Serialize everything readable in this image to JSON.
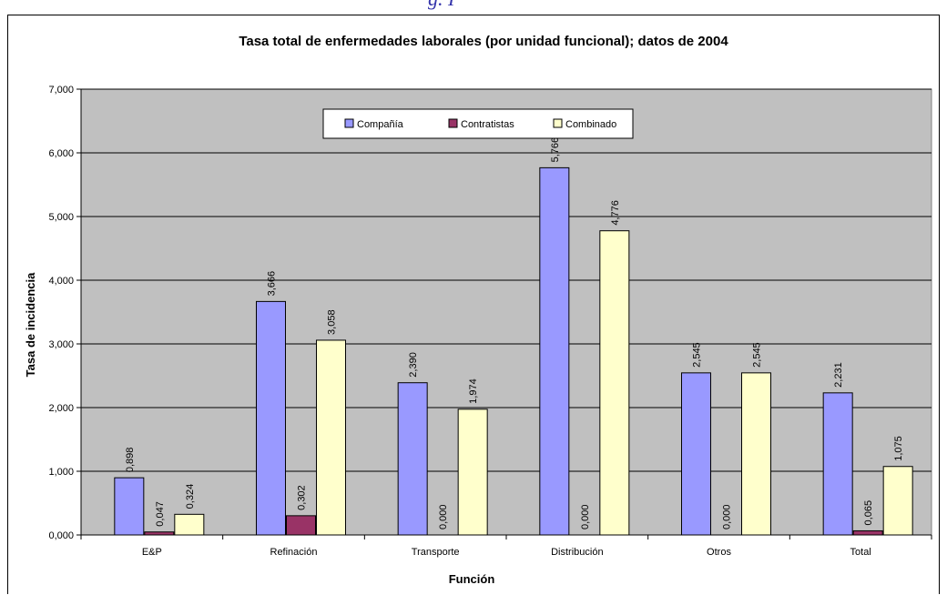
{
  "header_fragment": "g. I",
  "chart_data": {
    "type": "bar",
    "title": "Tasa total de enfermedades laborales (por unidad funcional); datos de 2004",
    "xlabel": "Función",
    "ylabel": "Tasa de incidencia",
    "categories": [
      "E&P",
      "Refinación",
      "Transporte",
      "Distribución",
      "Otros",
      "Total"
    ],
    "series": [
      {
        "name": "Compañía",
        "color": "#9999ff",
        "values": [
          0.898,
          3.666,
          2.39,
          5.766,
          2.545,
          2.231
        ],
        "labels": [
          "0,898",
          "3,666",
          "2,390",
          "5,766",
          "2,545",
          "2,231"
        ]
      },
      {
        "name": "Contratistas",
        "color": "#993366",
        "values": [
          0.047,
          0.302,
          0.0,
          0.0,
          0.0,
          0.065
        ],
        "labels": [
          "0,047",
          "0,302",
          "0,000",
          "0,000",
          "0,000",
          "0,065"
        ]
      },
      {
        "name": "Combinado",
        "color": "#ffffcc",
        "values": [
          0.324,
          3.058,
          1.974,
          4.776,
          2.545,
          1.075
        ],
        "labels": [
          "0,324",
          "3,058",
          "1,974",
          "4,776",
          "2,545",
          "1,075"
        ]
      }
    ],
    "ylim": [
      0,
      7
    ],
    "yticks": [
      0,
      1,
      2,
      3,
      4,
      5,
      6,
      7
    ],
    "ytick_labels": [
      "0,000",
      "1,000",
      "2,000",
      "3,000",
      "4,000",
      "5,000",
      "6,000",
      "7,000"
    ],
    "grid": true,
    "plot_background": "#c0c0c0",
    "legend_position": "top-center"
  }
}
